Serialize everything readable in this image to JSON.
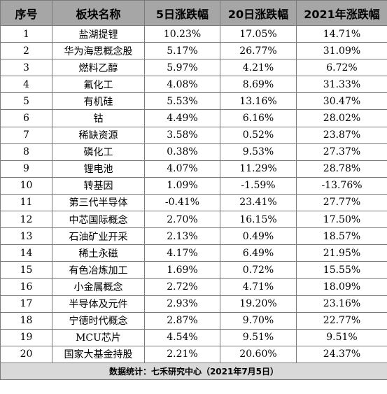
{
  "table": {
    "headers": [
      "序号",
      "板块名称",
      "5日涨跌幅",
      "20日涨跌幅",
      "2021年涨跌幅"
    ],
    "rows": [
      [
        "1",
        "盐湖提锂",
        "10.23%",
        "17.05%",
        "14.71%"
      ],
      [
        "2",
        "华为海思概念股",
        "5.17%",
        "26.77%",
        "31.09%"
      ],
      [
        "3",
        "燃料乙醇",
        "5.97%",
        "4.21%",
        "6.72%"
      ],
      [
        "4",
        "氟化工",
        "4.08%",
        "8.69%",
        "31.33%"
      ],
      [
        "5",
        "有机硅",
        "5.53%",
        "13.16%",
        "30.47%"
      ],
      [
        "6",
        "钴",
        "4.49%",
        "6.16%",
        "28.02%"
      ],
      [
        "7",
        "稀缺资源",
        "3.58%",
        "0.52%",
        "23.87%"
      ],
      [
        "8",
        "磷化工",
        "0.38%",
        "9.53%",
        "27.37%"
      ],
      [
        "9",
        "锂电池",
        "4.07%",
        "11.29%",
        "28.78%"
      ],
      [
        "10",
        "转基因",
        "1.09%",
        "-1.59%",
        "-13.76%"
      ],
      [
        "11",
        "第三代半导体",
        "-0.41%",
        "23.41%",
        "27.77%"
      ],
      [
        "12",
        "中芯国际概念",
        "2.70%",
        "16.15%",
        "17.50%"
      ],
      [
        "13",
        "石油矿业开采",
        "2.13%",
        "0.49%",
        "18.57%"
      ],
      [
        "14",
        "稀土永磁",
        "4.17%",
        "6.49%",
        "21.95%"
      ],
      [
        "15",
        "有色冶炼加工",
        "1.69%",
        "0.72%",
        "15.55%"
      ],
      [
        "16",
        "小金属概念",
        "2.72%",
        "4.71%",
        "18.09%"
      ],
      [
        "17",
        "半导体及元件",
        "2.93%",
        "19.20%",
        "23.16%"
      ],
      [
        "18",
        "宁德时代概念",
        "2.87%",
        "9.70%",
        "22.77%"
      ],
      [
        "19",
        "MCU芯片",
        "4.54%",
        "9.51%",
        "9.51%"
      ],
      [
        "20",
        "国家大基金持股",
        "2.21%",
        "20.60%",
        "24.37%"
      ]
    ],
    "footer": "数据统计：七禾研究中心（2021年7月5日）"
  }
}
